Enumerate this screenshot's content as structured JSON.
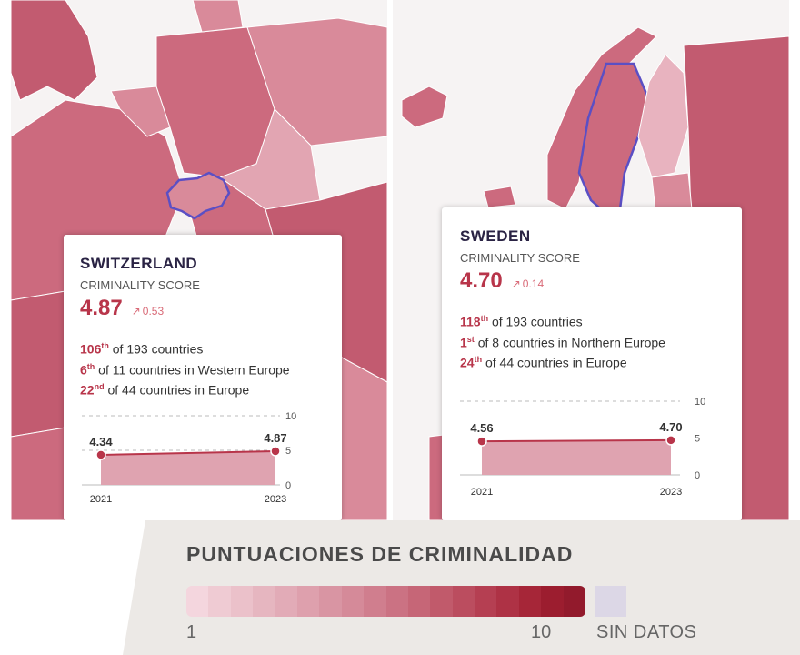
{
  "cards": [
    {
      "country": "SWITZERLAND",
      "score_label": "CRIMINALITY SCORE",
      "score": "4.87",
      "change": "0.53",
      "ranks": [
        {
          "num": "106",
          "suffix": "th",
          "text": " of 193 countries"
        },
        {
          "num": "6",
          "suffix": "th",
          "text": " of 11 countries in Western Europe"
        },
        {
          "num": "22",
          "suffix": "nd",
          "text": " of 44 countries in Europe"
        }
      ],
      "chart_data": {
        "type": "area",
        "x": [
          "2021",
          "2023"
        ],
        "values": [
          4.34,
          4.87
        ],
        "ylim": [
          0,
          10
        ],
        "yticks": [
          "10",
          "5",
          "0"
        ],
        "value_labels": [
          "4.34",
          "4.87"
        ],
        "x_labels": [
          "2021",
          "2023"
        ]
      }
    },
    {
      "country": "SWEDEN",
      "score_label": "CRIMINALITY SCORE",
      "score": "4.70",
      "change": "0.14",
      "ranks": [
        {
          "num": "118",
          "suffix": "th",
          "text": " of 193 countries"
        },
        {
          "num": "1",
          "suffix": "st",
          "text": " of 8 countries in Northern Europe"
        },
        {
          "num": "24",
          "suffix": "th",
          "text": " of 44 countries in Europe"
        }
      ],
      "chart_data": {
        "type": "area",
        "x": [
          "2021",
          "2023"
        ],
        "values": [
          4.56,
          4.7
        ],
        "ylim": [
          0,
          10
        ],
        "yticks": [
          "10",
          "5",
          "0"
        ],
        "value_labels": [
          "4.56",
          "4.70"
        ],
        "x_labels": [
          "2021",
          "2023"
        ]
      }
    }
  ],
  "legend": {
    "title": "PUNTUACIONES DE CRIMINALIDAD",
    "min_label": "1",
    "max_label": "10",
    "nodata_label": "SIN DATOS",
    "colors": [
      "#f4d6de",
      "#efcbd3",
      "#ebc1ca",
      "#e6b6c0",
      "#e2abb7",
      "#dea0ad",
      "#d995a3",
      "#d58a99",
      "#d07e8e",
      "#cb7283",
      "#c66677",
      "#c15a6b",
      "#bb4d5f",
      "#b53f52",
      "#ae3245",
      "#a62638",
      "#9c1d2f",
      "#921a2c"
    ],
    "nodata_color": "#dcd7e6"
  },
  "map": {
    "sea_color": "#ffffff",
    "land_colors": [
      "#cc6a7e",
      "#d98a9a",
      "#e8b3bf",
      "#c25b70"
    ],
    "highlight_border": "#5b4fc4"
  }
}
